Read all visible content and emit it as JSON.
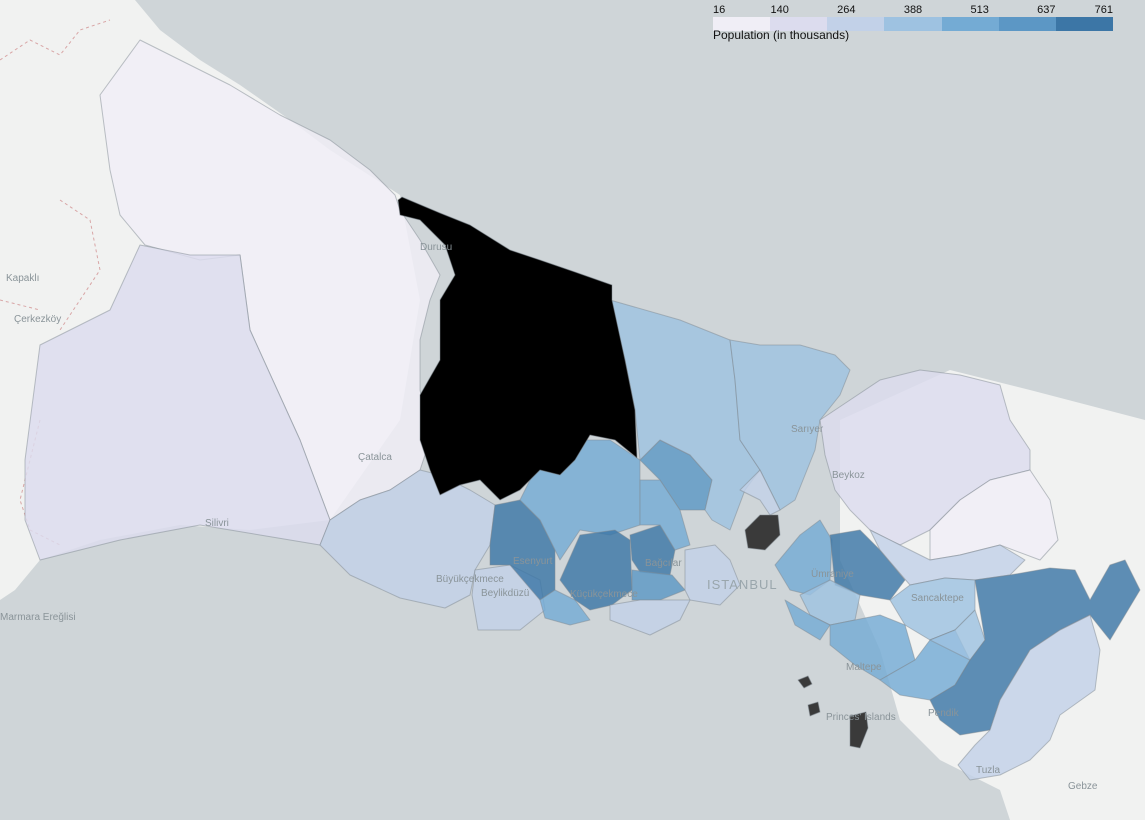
{
  "legend": {
    "title": "Population (in thousands)",
    "ticks": [
      "16",
      "140",
      "264",
      "388",
      "513",
      "637",
      "761"
    ],
    "min": 16,
    "max": 761,
    "colors": [
      "#f0eef6",
      "#dcdcee",
      "#c2d1e8",
      "#9ec2e1",
      "#74abd4",
      "#5c97c5",
      "#3c76a6"
    ]
  },
  "colors": {
    "sea": "#cfd5d8",
    "land": "#f1f2f1",
    "shore": "#bfc7cb",
    "district_border": "#7f8a92",
    "selected_district": "#000000",
    "no_data": "#3a3a3a"
  },
  "places": [
    {
      "id": "kapakli",
      "label": "Kapaklı"
    },
    {
      "id": "cerkezkoy",
      "label": "Çerkezköy"
    },
    {
      "id": "catalca",
      "label": "Çatalca"
    },
    {
      "id": "silivri",
      "label": "Silivri"
    },
    {
      "id": "durusu",
      "label": "Durusu"
    },
    {
      "id": "buyukcekmece",
      "label": "Büyükçekmece"
    },
    {
      "id": "beylikduzu",
      "label": "Beylikdüzü"
    },
    {
      "id": "esenyurt",
      "label": "Esenyurt"
    },
    {
      "id": "kucukcekmece",
      "label": "Küçükçekmece"
    },
    {
      "id": "bagcilar",
      "label": "Bağcılar"
    },
    {
      "id": "istanbul",
      "label": "ISTANBUL"
    },
    {
      "id": "sariyer",
      "label": "Sarıyer"
    },
    {
      "id": "beykoz",
      "label": "Beykoz"
    },
    {
      "id": "umraniye",
      "label": "Ümraniye"
    },
    {
      "id": "sancaktepe",
      "label": "Sancaktepe"
    },
    {
      "id": "maltepe",
      "label": "Maltepe"
    },
    {
      "id": "princes_islands",
      "label": "Princes' Islands"
    },
    {
      "id": "pendik",
      "label": "Pendik"
    },
    {
      "id": "tuzla",
      "label": "Tuzla"
    },
    {
      "id": "gebze",
      "label": "Gebze"
    },
    {
      "id": "marmara_ereglisi",
      "label": "Marmara Ereğlisi"
    }
  ],
  "districts": [
    {
      "id": "catalca",
      "population_k": 70
    },
    {
      "id": "silivri",
      "population_k": 190
    },
    {
      "id": "arnavutkoy",
      "population_k": null,
      "selected": true
    },
    {
      "id": "buyukcekmece",
      "population_k": 250
    },
    {
      "id": "sariyer",
      "population_k": 345
    },
    {
      "id": "eyupsultan",
      "population_k": 400
    },
    {
      "id": "basaksehir",
      "population_k": 460
    },
    {
      "id": "esenyurt",
      "population_k": 761
    },
    {
      "id": "beylikduzu",
      "population_k": 320
    },
    {
      "id": "kucukcekmece",
      "population_k": 740
    },
    {
      "id": "bagcilar",
      "population_k": 730
    },
    {
      "id": "gaziosmanpasa",
      "population_k": 510
    },
    {
      "id": "sultangazi",
      "population_k": 550
    },
    {
      "id": "avcilar",
      "population_k": 450
    },
    {
      "id": "bahcelievler",
      "population_k": 600
    },
    {
      "id": "beykoz",
      "population_k": 225
    },
    {
      "id": "sile",
      "population_k": 38
    },
    {
      "id": "umraniye",
      "population_k": 690
    },
    {
      "id": "uskudar",
      "population_k": 530
    },
    {
      "id": "atasehir",
      "population_k": 420
    },
    {
      "id": "cekmekoy",
      "population_k": 270
    },
    {
      "id": "sancaktepe",
      "population_k": 440
    },
    {
      "id": "kadikoy",
      "population_k": 460
    },
    {
      "id": "maltepe",
      "population_k": 495
    },
    {
      "id": "kartal",
      "population_k": 470
    },
    {
      "id": "sultanbeyli",
      "population_k": 345
    },
    {
      "id": "pendik",
      "population_k": 711
    },
    {
      "id": "tuzla",
      "population_k": 250
    },
    {
      "id": "besiktas",
      "population_k": null
    },
    {
      "id": "adalar",
      "population_k": null
    }
  ]
}
